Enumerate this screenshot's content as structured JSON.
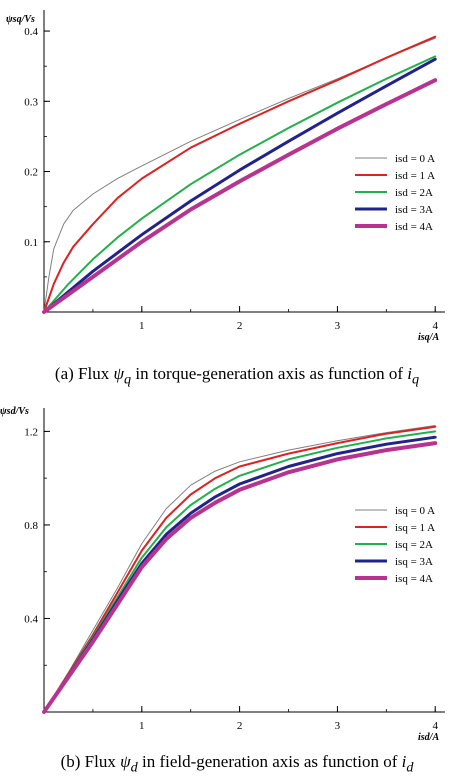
{
  "chart_data": [
    {
      "type": "line",
      "ylabel": "ψsq/Vs",
      "xlabel": "isq/A",
      "xlim": [
        0,
        4.1
      ],
      "ylim": [
        0,
        0.43
      ],
      "xticks": [
        1,
        2,
        3,
        4
      ],
      "yticks": [
        0.1,
        0.2,
        0.3,
        0.4
      ],
      "yticklabels": [
        "0.1",
        "0.2",
        "0.3",
        "0.4"
      ],
      "legend_position": "right",
      "series": [
        {
          "name": "isd = 0 A",
          "color": "#808080",
          "width": 1,
          "x": [
            0,
            0.05,
            0.1,
            0.2,
            0.3,
            0.5,
            0.75,
            1.0,
            1.5,
            2.0,
            2.5,
            3.0,
            3.5,
            4.0
          ],
          "y": [
            0,
            0.05,
            0.09,
            0.125,
            0.145,
            0.168,
            0.19,
            0.208,
            0.243,
            0.274,
            0.304,
            0.332,
            0.362,
            0.39
          ]
        },
        {
          "name": "isd = 1 A",
          "color": "#dd2222",
          "width": 2,
          "x": [
            0,
            0.1,
            0.2,
            0.3,
            0.5,
            0.75,
            1.0,
            1.5,
            2.0,
            2.5,
            3.0,
            3.5,
            4.0
          ],
          "y": [
            0,
            0.04,
            0.07,
            0.093,
            0.125,
            0.162,
            0.19,
            0.234,
            0.268,
            0.3,
            0.33,
            0.362,
            0.392
          ]
        },
        {
          "name": "isd = 2A",
          "color": "#22b04b",
          "width": 2,
          "x": [
            0,
            0.25,
            0.5,
            0.75,
            1.0,
            1.5,
            2.0,
            2.5,
            3.0,
            3.5,
            4.0
          ],
          "y": [
            0,
            0.04,
            0.075,
            0.106,
            0.133,
            0.182,
            0.224,
            0.262,
            0.298,
            0.332,
            0.364
          ]
        },
        {
          "name": "isd = 3A",
          "color": "#22228c",
          "width": 3,
          "x": [
            0,
            0.5,
            1.0,
            1.5,
            2.0,
            2.5,
            3.0,
            3.5,
            4.0
          ],
          "y": [
            0,
            0.058,
            0.11,
            0.158,
            0.202,
            0.243,
            0.283,
            0.322,
            0.36
          ]
        },
        {
          "name": "isd = 4A",
          "color": "#b8338f",
          "width": 4,
          "x": [
            0,
            0.5,
            1.0,
            1.5,
            2.0,
            2.5,
            3.0,
            3.5,
            4.0
          ],
          "y": [
            0,
            0.05,
            0.1,
            0.146,
            0.186,
            0.224,
            0.261,
            0.296,
            0.33
          ]
        }
      ]
    },
    {
      "type": "line",
      "ylabel": "ψsd/Vs",
      "xlabel": "isd/A",
      "xlim": [
        0,
        4.1
      ],
      "ylim": [
        0,
        1.3
      ],
      "xticks": [
        1,
        2,
        3,
        4
      ],
      "yticks": [
        0.4,
        0.8,
        1.2
      ],
      "yticklabels": [
        "0.4",
        "0.8",
        "1.2"
      ],
      "legend_position": "right",
      "series": [
        {
          "name": "isq = 0 A",
          "color": "#808080",
          "width": 1,
          "x": [
            0,
            0.25,
            0.5,
            0.75,
            1.0,
            1.25,
            1.5,
            1.75,
            2.0,
            2.5,
            3.0,
            3.5,
            4.0
          ],
          "y": [
            0,
            0.17,
            0.35,
            0.53,
            0.72,
            0.87,
            0.97,
            1.03,
            1.07,
            1.12,
            1.16,
            1.195,
            1.225
          ]
        },
        {
          "name": "isq = 1 A",
          "color": "#dd2222",
          "width": 2,
          "x": [
            0,
            0.25,
            0.5,
            0.75,
            1.0,
            1.25,
            1.5,
            1.75,
            2.0,
            2.5,
            3.0,
            3.5,
            4.0
          ],
          "y": [
            0,
            0.165,
            0.33,
            0.51,
            0.69,
            0.83,
            0.93,
            1.0,
            1.05,
            1.105,
            1.15,
            1.19,
            1.22
          ]
        },
        {
          "name": "isq = 2A",
          "color": "#22b04b",
          "width": 2,
          "x": [
            0,
            0.25,
            0.5,
            0.75,
            1.0,
            1.25,
            1.5,
            1.75,
            2.0,
            2.5,
            3.0,
            3.5,
            4.0
          ],
          "y": [
            0,
            0.16,
            0.32,
            0.49,
            0.66,
            0.79,
            0.885,
            0.955,
            1.01,
            1.08,
            1.13,
            1.17,
            1.2
          ]
        },
        {
          "name": "isq = 3A",
          "color": "#22228c",
          "width": 3,
          "x": [
            0,
            0.25,
            0.5,
            0.75,
            1.0,
            1.25,
            1.5,
            1.75,
            2.0,
            2.5,
            3.0,
            3.5,
            4.0
          ],
          "y": [
            0,
            0.155,
            0.31,
            0.475,
            0.635,
            0.76,
            0.85,
            0.92,
            0.975,
            1.05,
            1.105,
            1.145,
            1.175
          ]
        },
        {
          "name": "isq = 4A",
          "color": "#b8338f",
          "width": 4,
          "x": [
            0,
            0.25,
            0.5,
            0.75,
            1.0,
            1.25,
            1.5,
            1.75,
            2.0,
            2.5,
            3.0,
            3.5,
            4.0
          ],
          "y": [
            0,
            0.15,
            0.3,
            0.46,
            0.62,
            0.74,
            0.83,
            0.895,
            0.95,
            1.025,
            1.08,
            1.12,
            1.15
          ]
        }
      ]
    }
  ],
  "captions": {
    "top": {
      "prefix": "(a)  Flux ",
      "sym": "ψ",
      "sub": "q",
      "mid": "  in torque-generation axis as function of ",
      "var": "i",
      "varsub": "q"
    },
    "bottom": {
      "prefix": "(b)  Flux ",
      "sym": "ψ",
      "sub": "d",
      "mid": "  in field-generation axis as function of ",
      "var": "i",
      "varsub": "d"
    }
  }
}
